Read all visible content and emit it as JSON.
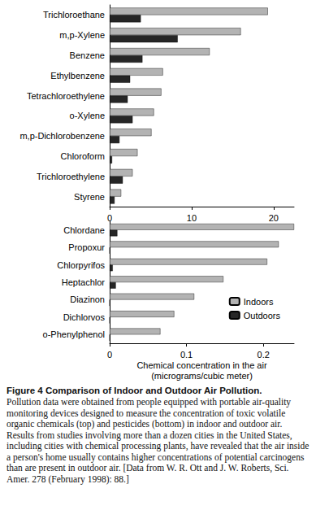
{
  "chart_data": [
    {
      "type": "bar",
      "orientation": "horizontal",
      "categories": [
        "Trichloroethane",
        "m,p-Xylene",
        "Benzene",
        "Ethylbenzene",
        "Tetrachloroethylene",
        "o-Xylene",
        "m,p-Dichlorobenzene",
        "Chloroform",
        "Trichloroethylene",
        "Styrene"
      ],
      "series": [
        {
          "name": "Indoors",
          "color": "#b3b3b3",
          "values": [
            19.3,
            16.0,
            12.2,
            6.5,
            6.3,
            5.4,
            5.1,
            3.4,
            2.8,
            1.4
          ]
        },
        {
          "name": "Outdoors",
          "color": "#262626",
          "values": [
            3.8,
            8.3,
            4.0,
            2.5,
            2.2,
            2.8,
            1.2,
            0.3,
            1.6,
            0.6
          ]
        }
      ],
      "xlim": [
        0,
        22.5
      ],
      "xticks": [
        0,
        10,
        20
      ],
      "grid": false,
      "legend": false
    },
    {
      "type": "bar",
      "orientation": "horizontal",
      "categories": [
        "Chlordane",
        "Propoxur",
        "Chlorpyrifos",
        "Heptachlor",
        "Diazinon",
        "Dichlorvos",
        "o-Phenylphenol"
      ],
      "series": [
        {
          "name": "Indoors",
          "color": "#b3b3b3",
          "values": [
            0.24,
            0.22,
            0.205,
            0.148,
            0.11,
            0.084,
            0.066
          ]
        },
        {
          "name": "Outdoors",
          "color": "#262626",
          "values": [
            0.01,
            0,
            0.004,
            0.008,
            0,
            0,
            0
          ]
        }
      ],
      "xlim": [
        0,
        0.24
      ],
      "xticks": [
        0,
        0.1,
        0.2
      ],
      "grid": false,
      "legend": "lower right",
      "xlabel": "Chemical concentration in the air\n(micrograms/cubic meter)"
    }
  ],
  "caption": {
    "title": "Figure 4   Comparison of Indoor and Outdoor Air Pollution.",
    "text": "Pollution data were obtained from people equipped with portable air-quality monitoring devices designed to measure the concentration of toxic volatile organic chemicals (top) and pesticides (bottom) in indoor and outdoor air. Results from studies involving more than a dozen cities in the United States, including cities with chemical processing plants, have revealed that the air inside a person's home usually contains higher concentrations of potential carcinogens than are present in outdoor air. [Data from W. R. Ott and J. W. Roberts, Sci. Amer. 278 (February 1998): 88.]"
  }
}
